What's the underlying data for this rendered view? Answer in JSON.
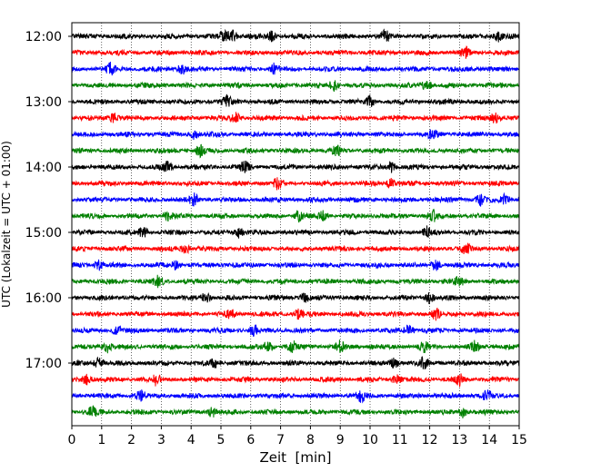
{
  "chart_data": {
    "type": "line",
    "title": "",
    "xlabel": "Zeit  [min]",
    "ylabel": "UTC (Lokalzeit = UTC + 01:00)",
    "xlim": [
      0,
      15
    ],
    "x_ticks": [
      "0",
      "1",
      "2",
      "3",
      "4",
      "5",
      "6",
      "7",
      "8",
      "9",
      "10",
      "11",
      "12",
      "13",
      "14",
      "15"
    ],
    "y_tick_labels": [
      "12:00",
      "13:00",
      "14:00",
      "15:00",
      "16:00",
      "17:00"
    ],
    "grid": "vertical dotted lines at each minute",
    "trace_minutes": 15,
    "trace_colors": [
      "#000000",
      "#ff0000",
      "#0000ff",
      "#008000"
    ],
    "series": [
      {
        "start": "12:00",
        "color": "#000000",
        "spikes": [
          5.1,
          5.4,
          6.7,
          10.5,
          14.3
        ]
      },
      {
        "start": "12:15",
        "color": "#ff0000",
        "spikes": [
          13.2
        ]
      },
      {
        "start": "12:30",
        "color": "#0000ff",
        "spikes": [
          1.3,
          3.7,
          6.8
        ]
      },
      {
        "start": "12:45",
        "color": "#008000",
        "spikes": [
          8.8,
          11.9
        ]
      },
      {
        "start": "13:00",
        "color": "#000000",
        "spikes": [
          5.2,
          10.0
        ]
      },
      {
        "start": "13:15",
        "color": "#ff0000",
        "spikes": [
          1.4,
          5.5,
          14.2
        ]
      },
      {
        "start": "13:30",
        "color": "#0000ff",
        "spikes": [
          4.1,
          12.1
        ]
      },
      {
        "start": "13:45",
        "color": "#008000",
        "spikes": [
          4.3,
          8.9
        ]
      },
      {
        "start": "14:00",
        "color": "#000000",
        "spikes": [
          3.2,
          5.8,
          10.7
        ]
      },
      {
        "start": "14:15",
        "color": "#ff0000",
        "spikes": [
          6.9,
          10.7
        ]
      },
      {
        "start": "14:30",
        "color": "#0000ff",
        "spikes": [
          4.1,
          13.7,
          14.5
        ]
      },
      {
        "start": "14:45",
        "color": "#008000",
        "spikes": [
          3.2,
          7.6,
          8.4,
          12.1
        ]
      },
      {
        "start": "15:00",
        "color": "#000000",
        "spikes": [
          2.4,
          5.6,
          11.9
        ]
      },
      {
        "start": "15:15",
        "color": "#ff0000",
        "spikes": [
          3.8,
          13.2
        ]
      },
      {
        "start": "15:30",
        "color": "#0000ff",
        "spikes": [
          0.9,
          3.5,
          12.2
        ]
      },
      {
        "start": "15:45",
        "color": "#008000",
        "spikes": [
          2.9,
          13.0
        ]
      },
      {
        "start": "16:00",
        "color": "#000000",
        "spikes": [
          4.5,
          7.8,
          12.0
        ]
      },
      {
        "start": "16:15",
        "color": "#ff0000",
        "spikes": [
          5.3,
          7.6,
          12.2
        ]
      },
      {
        "start": "16:30",
        "color": "#0000ff",
        "spikes": [
          1.5,
          6.1,
          11.3
        ]
      },
      {
        "start": "16:45",
        "color": "#008000",
        "spikes": [
          1.2,
          6.6,
          7.4,
          9.0,
          11.8,
          13.5
        ]
      },
      {
        "start": "17:00",
        "color": "#000000",
        "spikes": [
          0.9,
          4.8,
          10.8,
          11.8
        ]
      },
      {
        "start": "17:15",
        "color": "#ff0000",
        "spikes": [
          0.5,
          2.8,
          10.9,
          13.0
        ]
      },
      {
        "start": "17:30",
        "color": "#0000ff",
        "spikes": [
          2.3,
          9.7,
          13.9
        ]
      },
      {
        "start": "17:45",
        "color": "#008000",
        "spikes": [
          0.7,
          4.7,
          13.1
        ]
      }
    ]
  }
}
